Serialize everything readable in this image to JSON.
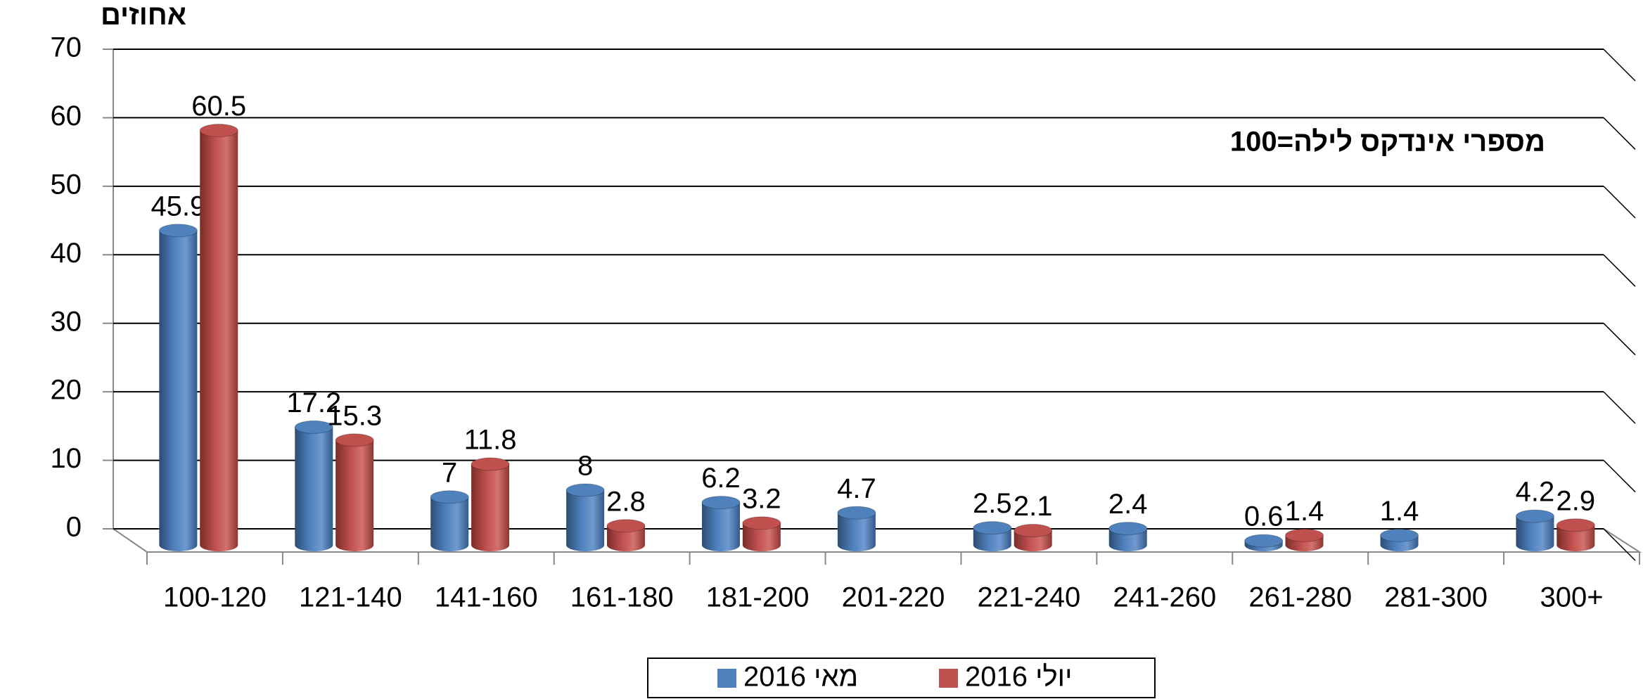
{
  "chart_data": {
    "type": "bar3d",
    "y_label": "אחוזים",
    "annotation": "מספרי אינדקס לילה=100",
    "categories": [
      "100-120",
      "121-140",
      "141-160",
      "161-180",
      "181-200",
      "201-220",
      "221-240",
      "241-260",
      "261-280",
      "281-300",
      "300+"
    ],
    "series": [
      {
        "name": "מאי 2016",
        "color": "#4f81bd",
        "values": [
          45.9,
          17.2,
          7,
          8,
          6.2,
          4.7,
          2.5,
          2.4,
          0.6,
          1.4,
          4.2
        ]
      },
      {
        "name": "יולי 2016",
        "color": "#c0504d",
        "values": [
          60.5,
          15.3,
          11.8,
          2.8,
          3.2,
          null,
          2.1,
          null,
          1.4,
          null,
          2.9
        ]
      }
    ],
    "ylim": [
      0,
      70
    ],
    "yticks": [
      0,
      10,
      20,
      30,
      40,
      50,
      60,
      70
    ],
    "grid": true,
    "legend": "bottom"
  }
}
